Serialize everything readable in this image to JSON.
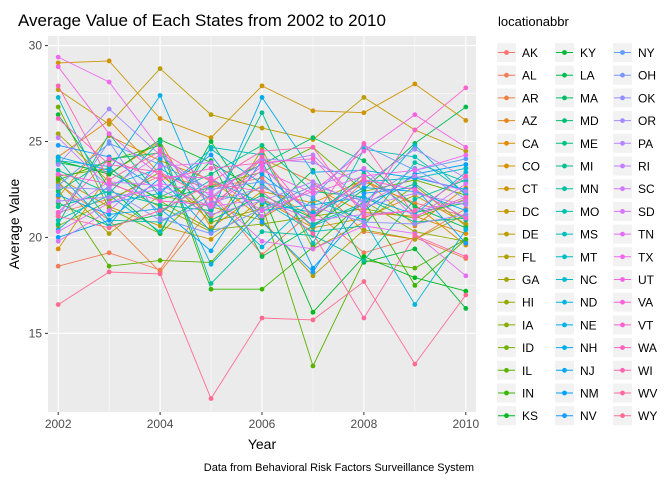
{
  "chart_data": {
    "type": "line",
    "title": "Average Value of Each States from 2002 to 2010",
    "xlabel": "Year",
    "ylabel": "Average Value",
    "caption": "Data from Behavioral Risk Factors Surveillance System",
    "legend_title": "locationabbr",
    "legend_position": "right",
    "grid": true,
    "x": [
      2002,
      2003,
      2004,
      2005,
      2006,
      2007,
      2008,
      2009,
      2010
    ],
    "xticks": [
      2002,
      2004,
      2006,
      2008,
      2010
    ],
    "yticks": [
      15,
      20,
      25,
      30
    ],
    "xlim": [
      2001.8,
      2010.2
    ],
    "ylim": [
      10.9,
      30.5
    ],
    "series": [
      {
        "name": "AK",
        "color": "#F8766D",
        "values": [
          21.3,
          22.0,
          23.2,
          22.6,
          23.1,
          20.5,
          22.9,
          21.8,
          21.1
        ]
      },
      {
        "name": "AL",
        "color": "#F37B59",
        "values": [
          18.5,
          19.2,
          18.3,
          22.3,
          19.1,
          21.4,
          19.2,
          20.0,
          18.9
        ]
      },
      {
        "name": "AR",
        "color": "#ED8141",
        "values": [
          22.8,
          20.9,
          18.2,
          21.5,
          24.1,
          22.9,
          20.3,
          19.9,
          21.5
        ]
      },
      {
        "name": "AZ",
        "color": "#E7861B",
        "values": [
          24.2,
          26.1,
          23.3,
          21.1,
          22.7,
          21.0,
          23.1,
          20.6,
          22.6
        ]
      },
      {
        "name": "CA",
        "color": "#E08B00",
        "values": [
          22.1,
          25.3,
          24.0,
          23.0,
          21.0,
          22.6,
          21.3,
          21.1,
          20.2
        ]
      },
      {
        "name": "CO",
        "color": "#D89000",
        "values": [
          19.4,
          23.3,
          25.0,
          20.5,
          22.4,
          21.8,
          23.0,
          21.7,
          19.6
        ]
      },
      {
        "name": "CT",
        "color": "#CF9400",
        "values": [
          29.1,
          29.2,
          26.2,
          25.2,
          27.9,
          26.6,
          26.5,
          28.0,
          26.1
        ]
      },
      {
        "name": "DC",
        "color": "#C59900",
        "values": [
          23.1,
          21.6,
          20.6,
          19.9,
          22.0,
          20.5,
          21.0,
          22.2,
          20.7
        ]
      },
      {
        "name": "DE",
        "color": "#BB9D00",
        "values": [
          27.7,
          25.9,
          28.8,
          26.4,
          25.7,
          25.1,
          27.3,
          25.6,
          24.5
        ]
      },
      {
        "name": "FL",
        "color": "#AFA100",
        "values": [
          22.9,
          20.2,
          22.2,
          21.6,
          20.9,
          18.0,
          20.4,
          19.9,
          21.2
        ]
      },
      {
        "name": "GA",
        "color": "#A3A500",
        "values": [
          25.4,
          22.9,
          21.6,
          20.3,
          24.6,
          19.4,
          20.8,
          22.7,
          20.6
        ]
      },
      {
        "name": "HI",
        "color": "#95A900",
        "values": [
          20.6,
          21.9,
          23.4,
          20.8,
          21.5,
          22.7,
          21.9,
          20.3,
          19.8
        ]
      },
      {
        "name": "IA",
        "color": "#85AD00",
        "values": [
          23.2,
          23.6,
          21.9,
          20.4,
          20.7,
          21.1,
          21.5,
          21.0,
          22.0
        ]
      },
      {
        "name": "ID",
        "color": "#72B000",
        "values": [
          26.8,
          21.5,
          20.2,
          22.7,
          23.4,
          24.7,
          22.4,
          23.0,
          22.2
        ]
      },
      {
        "name": "IL",
        "color": "#5BB300",
        "values": [
          22.5,
          18.5,
          18.8,
          18.7,
          21.7,
          13.3,
          18.8,
          18.4,
          19.9
        ]
      },
      {
        "name": "IN",
        "color": "#39B600",
        "values": [
          23.0,
          24.0,
          24.8,
          17.3,
          17.3,
          19.5,
          21.9,
          17.5,
          19.9
        ]
      },
      {
        "name": "KS",
        "color": "#00B81F",
        "values": [
          24.0,
          23.3,
          25.1,
          23.9,
          22.3,
          16.1,
          19.0,
          17.9,
          17.2
        ]
      },
      {
        "name": "KY",
        "color": "#00BA38",
        "values": [
          26.4,
          22.6,
          20.2,
          25.0,
          21.0,
          23.5,
          18.7,
          19.4,
          16.3
        ]
      },
      {
        "name": "LA",
        "color": "#00BC4E",
        "values": [
          21.8,
          20.6,
          21.2,
          24.0,
          19.0,
          20.6,
          22.5,
          24.9,
          26.8
        ]
      },
      {
        "name": "MA",
        "color": "#00BE61",
        "values": [
          23.9,
          23.4,
          22.0,
          22.6,
          23.8,
          25.2,
          24.0,
          21.6,
          20.5
        ]
      },
      {
        "name": "MD",
        "color": "#00BF72",
        "values": [
          22.4,
          24.1,
          24.4,
          20.9,
          22.2,
          21.0,
          23.3,
          21.3,
          21.8
        ]
      },
      {
        "name": "ME",
        "color": "#00C082",
        "values": [
          20.7,
          25.4,
          22.1,
          23.3,
          24.8,
          22.4,
          22.1,
          20.8,
          21.0
        ]
      },
      {
        "name": "MI",
        "color": "#00C091",
        "values": [
          21.6,
          22.4,
          21.7,
          21.4,
          26.5,
          20.7,
          21.8,
          22.8,
          20.9
        ]
      },
      {
        "name": "MN",
        "color": "#00C0A0",
        "values": [
          23.5,
          22.3,
          25.0,
          17.6,
          20.3,
          20.1,
          18.8,
          22.0,
          23.0
        ]
      },
      {
        "name": "MO",
        "color": "#00BFAD",
        "values": [
          24.1,
          20.9,
          20.8,
          22.2,
          21.9,
          20.3,
          20.6,
          23.9,
          22.9
        ]
      },
      {
        "name": "MS",
        "color": "#00BEBA",
        "values": [
          20.9,
          22.2,
          20.3,
          24.7,
          24.3,
          19.7,
          24.6,
          24.2,
          22.3
        ]
      },
      {
        "name": "MT",
        "color": "#00BCC6",
        "values": [
          24.0,
          23.7,
          21.3,
          23.0,
          21.8,
          21.3,
          22.9,
          23.1,
          23.6
        ]
      },
      {
        "name": "NC",
        "color": "#00B9D1",
        "values": [
          27.3,
          21.8,
          22.3,
          24.6,
          22.8,
          20.6,
          21.7,
          24.8,
          22.2
        ]
      },
      {
        "name": "ND",
        "color": "#00B5DB",
        "values": [
          20.4,
          22.7,
          23.6,
          22.0,
          19.5,
          22.0,
          20.9,
          16.5,
          20.4
        ]
      },
      {
        "name": "NE",
        "color": "#00B1E4",
        "values": [
          23.3,
          20.6,
          24.1,
          18.6,
          21.4,
          21.7,
          22.1,
          21.2,
          23.4
        ]
      },
      {
        "name": "NH",
        "color": "#00ACEC",
        "values": [
          24.2,
          23.5,
          27.4,
          21.2,
          27.3,
          23.4,
          23.5,
          23.1,
          22.5
        ]
      },
      {
        "name": "NJ",
        "color": "#00A7F3",
        "values": [
          22.2,
          21.2,
          21.5,
          19.3,
          23.3,
          21.2,
          22.6,
          22.4,
          21.4
        ]
      },
      {
        "name": "NM",
        "color": "#00A1F8",
        "values": [
          20.0,
          20.9,
          23.1,
          20.3,
          24.0,
          18.4,
          21.4,
          23.3,
          23.8
        ]
      },
      {
        "name": "NV",
        "color": "#179BFD",
        "values": [
          24.8,
          24.2,
          22.4,
          24.3,
          20.8,
          18.2,
          22.3,
          22.6,
          19.7
        ]
      },
      {
        "name": "NY",
        "color": "#619CFF",
        "values": [
          22.7,
          24.9,
          23.8,
          22.5,
          22.9,
          22.1,
          24.8,
          23.5,
          24.1
        ]
      },
      {
        "name": "OH",
        "color": "#7C96FF",
        "values": [
          21.1,
          25.0,
          21.0,
          20.2,
          21.5,
          22.7,
          21.9,
          23.6,
          22.0
        ]
      },
      {
        "name": "OK",
        "color": "#9290FF",
        "values": [
          22.6,
          22.5,
          20.9,
          21.8,
          22.6,
          21.6,
          20.8,
          20.7,
          21.2
        ]
      },
      {
        "name": "OR",
        "color": "#A58AFF",
        "values": [
          23.8,
          26.7,
          24.3,
          22.1,
          24.1,
          23.9,
          22.8,
          24.6,
          23.1
        ]
      },
      {
        "name": "PA",
        "color": "#B584FF",
        "values": [
          21.9,
          22.1,
          22.5,
          21.2,
          21.9,
          22.9,
          21.6,
          22.3,
          21.7
        ]
      },
      {
        "name": "RI",
        "color": "#C37EFF",
        "values": [
          25.2,
          22.6,
          24.3,
          22.4,
          23.8,
          24.3,
          21.7,
          23.2,
          22.4
        ]
      },
      {
        "name": "SC",
        "color": "#D078FF",
        "values": [
          21.2,
          22.9,
          22.7,
          21.6,
          22.0,
          20.9,
          21.2,
          21.4,
          21.9
        ]
      },
      {
        "name": "SD",
        "color": "#DB72FB",
        "values": [
          19.8,
          21.4,
          23.7,
          23.9,
          21.1,
          22.6,
          23.6,
          21.0,
          22.8
        ]
      },
      {
        "name": "TN",
        "color": "#E56DF5",
        "values": [
          20.3,
          21.8,
          22.8,
          22.3,
          19.8,
          19.4,
          20.6,
          20.2,
          18.0
        ]
      },
      {
        "name": "TX",
        "color": "#EE69ED",
        "values": [
          29.4,
          28.1,
          24.6,
          21.6,
          23.5,
          22.3,
          23.2,
          23.5,
          24.3
        ]
      },
      {
        "name": "UT",
        "color": "#F564E3",
        "values": [
          28.9,
          25.4,
          23.2,
          23.1,
          21.4,
          22.4,
          24.5,
          26.4,
          24.7
        ]
      },
      {
        "name": "VA",
        "color": "#FA62D9",
        "values": [
          23.3,
          22.8,
          21.9,
          21.7,
          23.7,
          21.1,
          23.0,
          22.5,
          21.0
        ]
      },
      {
        "name": "VT",
        "color": "#FD61CD",
        "values": [
          21.3,
          24.1,
          23.0,
          23.6,
          23.9,
          24.1,
          21.4,
          25.6,
          27.8
        ]
      },
      {
        "name": "WA",
        "color": "#FF62BF",
        "values": [
          26.2,
          23.8,
          23.4,
          22.0,
          24.2,
          21.0,
          24.9,
          21.1,
          22.1
        ]
      },
      {
        "name": "WI",
        "color": "#FF65B2",
        "values": [
          27.9,
          23.0,
          24.5,
          22.9,
          24.5,
          24.7,
          21.1,
          21.4,
          23.2
        ]
      },
      {
        "name": "WV",
        "color": "#FF69A3",
        "values": [
          21.1,
          20.5,
          21.4,
          22.8,
          22.4,
          20.2,
          15.8,
          20.1,
          19.0
        ]
      },
      {
        "name": "WY",
        "color": "#FF6C92",
        "values": [
          16.5,
          18.2,
          18.1,
          11.6,
          15.8,
          15.7,
          17.7,
          13.4,
          17.0
        ]
      }
    ]
  }
}
